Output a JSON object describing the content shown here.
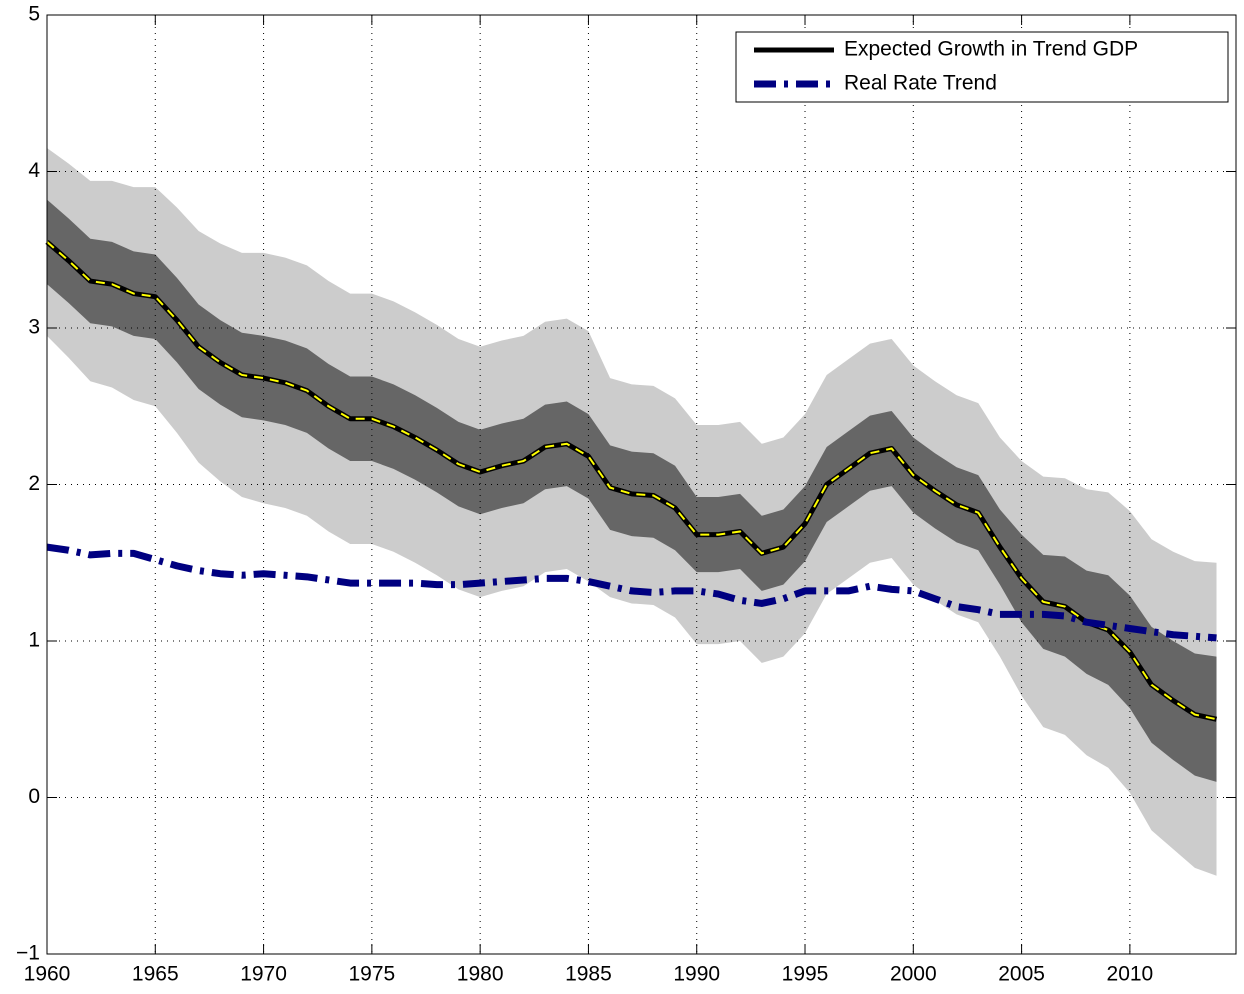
{
  "chart_data": {
    "type": "line",
    "x": [
      1960,
      1961,
      1962,
      1963,
      1964,
      1965,
      1966,
      1967,
      1968,
      1969,
      1970,
      1971,
      1972,
      1973,
      1974,
      1975,
      1976,
      1977,
      1978,
      1979,
      1980,
      1981,
      1982,
      1983,
      1984,
      1985,
      1986,
      1987,
      1988,
      1989,
      1990,
      1991,
      1992,
      1993,
      1994,
      1995,
      1996,
      1997,
      1998,
      1999,
      2000,
      2001,
      2002,
      2003,
      2004,
      2005,
      2006,
      2007,
      2008,
      2009,
      2010,
      2011,
      2012,
      2013,
      2014
    ],
    "series": [
      {
        "name": "Expected Growth in Trend GDP",
        "color": "#000000",
        "dash_color": "#ffff00",
        "values": [
          3.55,
          3.43,
          3.3,
          3.28,
          3.22,
          3.2,
          3.05,
          2.88,
          2.78,
          2.7,
          2.68,
          2.65,
          2.6,
          2.5,
          2.42,
          2.42,
          2.37,
          2.3,
          2.22,
          2.13,
          2.08,
          2.12,
          2.15,
          2.24,
          2.26,
          2.18,
          1.98,
          1.94,
          1.93,
          1.85,
          1.68,
          1.68,
          1.7,
          1.56,
          1.6,
          1.75,
          2.0,
          2.1,
          2.2,
          2.23,
          2.06,
          1.96,
          1.87,
          1.82,
          1.6,
          1.4,
          1.25,
          1.22,
          1.12,
          1.07,
          0.93,
          0.72,
          0.62,
          0.53,
          0.5
        ]
      },
      {
        "name": "Real Rate Trend",
        "color": "#000080",
        "values": [
          1.6,
          1.58,
          1.55,
          1.56,
          1.56,
          1.52,
          1.48,
          1.45,
          1.43,
          1.42,
          1.43,
          1.42,
          1.41,
          1.39,
          1.37,
          1.37,
          1.37,
          1.37,
          1.36,
          1.36,
          1.37,
          1.38,
          1.39,
          1.4,
          1.4,
          1.38,
          1.35,
          1.32,
          1.31,
          1.32,
          1.32,
          1.3,
          1.26,
          1.24,
          1.27,
          1.32,
          1.32,
          1.32,
          1.35,
          1.33,
          1.32,
          1.27,
          1.22,
          1.2,
          1.17,
          1.17,
          1.17,
          1.16,
          1.12,
          1.1,
          1.08,
          1.06,
          1.04,
          1.03,
          1.02
        ]
      }
    ],
    "bands": [
      {
        "color": "#cccccc",
        "upper": [
          4.15,
          4.05,
          3.94,
          3.94,
          3.9,
          3.9,
          3.77,
          3.62,
          3.54,
          3.48,
          3.48,
          3.45,
          3.4,
          3.3,
          3.22,
          3.22,
          3.17,
          3.1,
          3.02,
          2.93,
          2.88,
          2.92,
          2.95,
          3.04,
          3.06,
          2.98,
          2.68,
          2.64,
          2.63,
          2.55,
          2.38,
          2.38,
          2.4,
          2.26,
          2.3,
          2.45,
          2.7,
          2.8,
          2.9,
          2.93,
          2.76,
          2.66,
          2.57,
          2.52,
          2.3,
          2.15,
          2.05,
          2.04,
          1.97,
          1.95,
          1.83,
          1.65,
          1.57,
          1.51,
          1.5
        ],
        "lower": [
          2.95,
          2.81,
          2.66,
          2.62,
          2.54,
          2.5,
          2.33,
          2.14,
          2.02,
          1.92,
          1.88,
          1.85,
          1.8,
          1.7,
          1.62,
          1.62,
          1.57,
          1.5,
          1.42,
          1.33,
          1.28,
          1.32,
          1.35,
          1.44,
          1.46,
          1.38,
          1.28,
          1.24,
          1.23,
          1.15,
          0.98,
          0.98,
          1.0,
          0.86,
          0.9,
          1.05,
          1.3,
          1.4,
          1.5,
          1.53,
          1.36,
          1.26,
          1.17,
          1.12,
          0.9,
          0.65,
          0.45,
          0.4,
          0.27,
          0.19,
          0.03,
          -0.21,
          -0.33,
          -0.45,
          -0.5
        ]
      },
      {
        "color": "#666666",
        "upper": [
          3.82,
          3.7,
          3.57,
          3.55,
          3.49,
          3.47,
          3.32,
          3.15,
          3.05,
          2.97,
          2.95,
          2.92,
          2.87,
          2.77,
          2.69,
          2.69,
          2.64,
          2.57,
          2.49,
          2.4,
          2.35,
          2.39,
          2.42,
          2.51,
          2.53,
          2.45,
          2.25,
          2.21,
          2.2,
          2.12,
          1.92,
          1.92,
          1.94,
          1.8,
          1.84,
          1.99,
          2.24,
          2.34,
          2.44,
          2.47,
          2.3,
          2.2,
          2.11,
          2.06,
          1.84,
          1.68,
          1.55,
          1.54,
          1.45,
          1.42,
          1.29,
          1.09,
          1.0,
          0.92,
          0.9
        ],
        "lower": [
          3.28,
          3.16,
          3.03,
          3.01,
          2.95,
          2.93,
          2.78,
          2.61,
          2.51,
          2.43,
          2.41,
          2.38,
          2.33,
          2.23,
          2.15,
          2.15,
          2.1,
          2.03,
          1.95,
          1.86,
          1.81,
          1.85,
          1.88,
          1.97,
          1.99,
          1.91,
          1.71,
          1.67,
          1.66,
          1.58,
          1.44,
          1.44,
          1.46,
          1.32,
          1.36,
          1.51,
          1.76,
          1.86,
          1.96,
          1.99,
          1.82,
          1.72,
          1.63,
          1.58,
          1.36,
          1.12,
          0.95,
          0.9,
          0.79,
          0.72,
          0.57,
          0.35,
          0.24,
          0.14,
          0.1
        ]
      }
    ],
    "xlim": [
      1960,
      2014.9
    ],
    "xticks": [
      1960,
      1965,
      1970,
      1975,
      1980,
      1985,
      1990,
      1995,
      2000,
      2005,
      2010
    ],
    "ylim": [
      -1,
      5
    ],
    "yticks": [
      {
        "value": -1,
        "label": "−1"
      },
      0,
      1,
      2,
      3,
      4,
      5
    ],
    "grid": true,
    "legend": "upper right"
  }
}
